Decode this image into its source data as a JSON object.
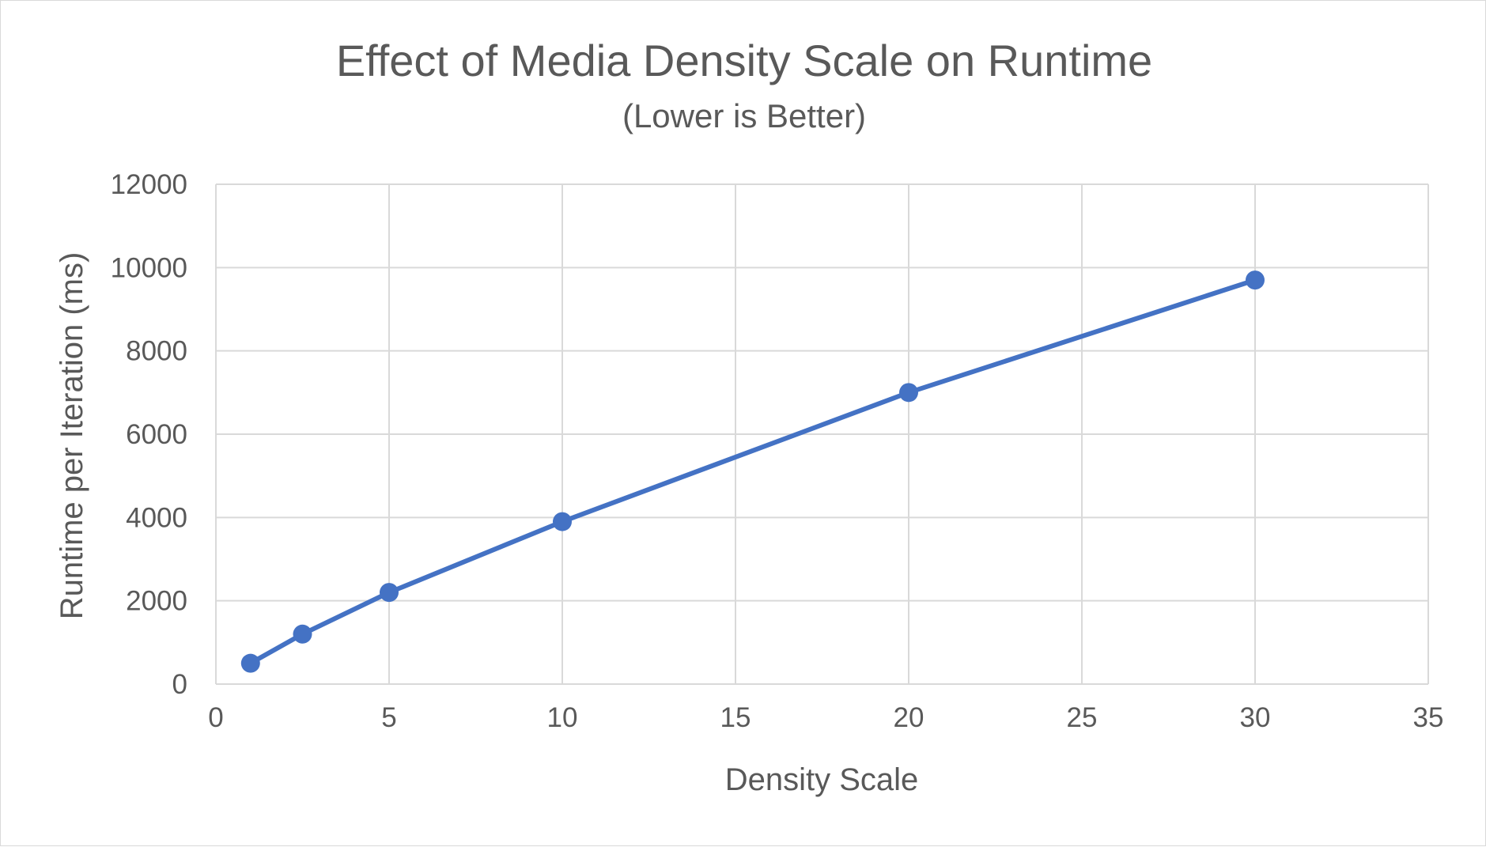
{
  "chart_data": {
    "type": "line",
    "title": "Effect of Media Density Scale on Runtime",
    "subtitle": "(Lower is Better)",
    "xlabel": "Density Scale",
    "ylabel": "Runtime per Iteration (ms)",
    "xlim": [
      0,
      35
    ],
    "ylim": [
      0,
      12000
    ],
    "xticks": [
      0,
      5,
      10,
      15,
      20,
      25,
      30,
      35
    ],
    "yticks": [
      0,
      2000,
      4000,
      6000,
      8000,
      10000,
      12000
    ],
    "grid": true,
    "legend": "none",
    "series": [
      {
        "color": "#4472c4",
        "x": [
          1,
          2.5,
          5,
          10,
          20,
          30
        ],
        "y": [
          500,
          1200,
          2200,
          3900,
          7000,
          9700
        ]
      }
    ]
  }
}
